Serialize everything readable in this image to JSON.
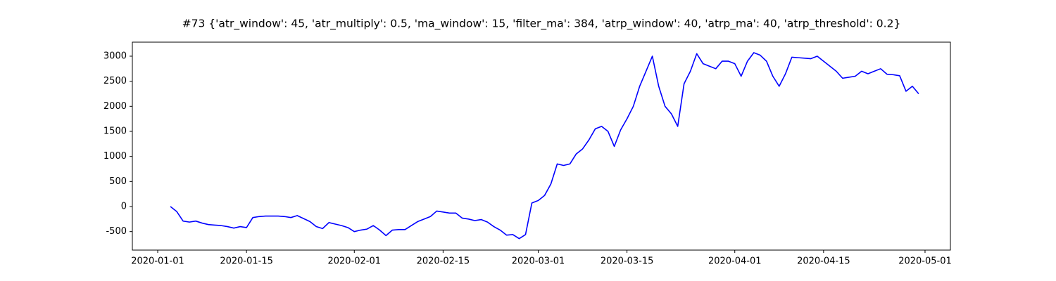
{
  "chart_data": {
    "type": "line",
    "title": "#73 {'atr_window': 45, 'atr_multiply': 0.5, 'ma_window': 15, 'filter_ma': 384, 'atrp_window': 40, 'atrp_ma': 40, 'atrp_threshold': 0.2}",
    "color": "#0000ff",
    "x": [
      "2020-01-03",
      "2020-01-04",
      "2020-01-05",
      "2020-01-06",
      "2020-01-07",
      "2020-01-08",
      "2020-01-09",
      "2020-01-10",
      "2020-01-11",
      "2020-01-12",
      "2020-01-13",
      "2020-01-14",
      "2020-01-15",
      "2020-01-16",
      "2020-01-17",
      "2020-01-18",
      "2020-01-19",
      "2020-01-20",
      "2020-01-21",
      "2020-01-22",
      "2020-01-23",
      "2020-01-24",
      "2020-01-25",
      "2020-01-26",
      "2020-01-27",
      "2020-01-28",
      "2020-01-29",
      "2020-01-30",
      "2020-01-31",
      "2020-02-01",
      "2020-02-02",
      "2020-02-03",
      "2020-02-04",
      "2020-02-05",
      "2020-02-06",
      "2020-02-07",
      "2020-02-08",
      "2020-02-09",
      "2020-02-10",
      "2020-02-11",
      "2020-02-12",
      "2020-02-13",
      "2020-02-14",
      "2020-02-15",
      "2020-02-16",
      "2020-02-17",
      "2020-02-18",
      "2020-02-19",
      "2020-02-20",
      "2020-02-21",
      "2020-02-22",
      "2020-02-23",
      "2020-02-24",
      "2020-02-25",
      "2020-02-26",
      "2020-02-27",
      "2020-02-28",
      "2020-02-29",
      "2020-03-01",
      "2020-03-02",
      "2020-03-03",
      "2020-03-04",
      "2020-03-05",
      "2020-03-06",
      "2020-03-07",
      "2020-03-08",
      "2020-03-09",
      "2020-03-10",
      "2020-03-11",
      "2020-03-12",
      "2020-03-13",
      "2020-03-14",
      "2020-03-15",
      "2020-03-16",
      "2020-03-17",
      "2020-03-18",
      "2020-03-19",
      "2020-03-20",
      "2020-03-21",
      "2020-03-22",
      "2020-03-23",
      "2020-03-24",
      "2020-03-25",
      "2020-03-26",
      "2020-03-27",
      "2020-03-28",
      "2020-03-29",
      "2020-03-30",
      "2020-03-31",
      "2020-04-01",
      "2020-04-02",
      "2020-04-03",
      "2020-04-04",
      "2020-04-05",
      "2020-04-06",
      "2020-04-07",
      "2020-04-08",
      "2020-04-09",
      "2020-04-10",
      "2020-04-11",
      "2020-04-12",
      "2020-04-13",
      "2020-04-14",
      "2020-04-15",
      "2020-04-16",
      "2020-04-17",
      "2020-04-18",
      "2020-04-19",
      "2020-04-20",
      "2020-04-21",
      "2020-04-22",
      "2020-04-23",
      "2020-04-24",
      "2020-04-25",
      "2020-04-26",
      "2020-04-27",
      "2020-04-28",
      "2020-04-29",
      "2020-04-30"
    ],
    "values": [
      0,
      -100,
      -290,
      -310,
      -290,
      -330,
      -360,
      -370,
      -380,
      -400,
      -430,
      -400,
      -420,
      -220,
      -200,
      -190,
      -190,
      -190,
      -200,
      -220,
      -180,
      -240,
      -300,
      -400,
      -440,
      -320,
      -350,
      -380,
      -420,
      -500,
      -470,
      -450,
      -380,
      -470,
      -580,
      -470,
      -460,
      -460,
      -380,
      -300,
      -250,
      -200,
      -90,
      -110,
      -130,
      -130,
      -230,
      -250,
      -280,
      -260,
      -310,
      -400,
      -470,
      -570,
      -560,
      -640,
      -560,
      70,
      120,
      220,
      450,
      850,
      820,
      850,
      1050,
      1150,
      1330,
      1550,
      1600,
      1500,
      1200,
      1530,
      1750,
      2000,
      2400,
      2700,
      3000,
      2400,
      2000,
      1850,
      1600,
      2450,
      2700,
      3050,
      2850,
      2800,
      2750,
      2900,
      2900,
      2850,
      2600,
      2900,
      3070,
      3020,
      2900,
      2600,
      2400,
      2650,
      2980,
      2970,
      2960,
      2950,
      3000,
      2900,
      2800,
      2700,
      2560,
      2580,
      2600,
      2700,
      2650,
      2700,
      2750,
      2640,
      2630,
      2610,
      2300,
      2400,
      2250
    ],
    "xlim": [
      "2019-12-28",
      "2020-05-05"
    ],
    "xticks": [
      "2020-01-01",
      "2020-01-15",
      "2020-02-01",
      "2020-02-15",
      "2020-03-01",
      "2020-03-15",
      "2020-04-01",
      "2020-04-15",
      "2020-05-01"
    ],
    "ylim": [
      -869,
      3280
    ],
    "yticks": [
      -500,
      0,
      500,
      1000,
      1500,
      2000,
      2500,
      3000
    ]
  }
}
